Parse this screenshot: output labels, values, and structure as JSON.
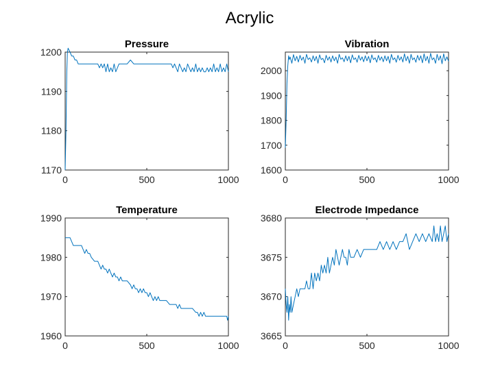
{
  "figure": {
    "title": "Acrylic"
  },
  "chart_data": [
    {
      "type": "line",
      "title": "Pressure",
      "xlabel": "",
      "ylabel": "",
      "xlim": [
        0,
        1000
      ],
      "ylim": [
        1170,
        1200
      ],
      "xticks": [
        0,
        500,
        1000
      ],
      "yticks": [
        1170,
        1180,
        1190,
        1200
      ],
      "grid": false,
      "color": "#0072BD",
      "series": [
        {
          "x": [
            0,
            5,
            10,
            14,
            18,
            30,
            40,
            50,
            60,
            70,
            80,
            90,
            95,
            100,
            120,
            150,
            180,
            200,
            210,
            220,
            230,
            240,
            250,
            260,
            270,
            280,
            290,
            300,
            310,
            320,
            330,
            340,
            350,
            380,
            400,
            420,
            430,
            440,
            460,
            500,
            550,
            600,
            650,
            660,
            670,
            680,
            690,
            700,
            710,
            720,
            730,
            740,
            750,
            760,
            770,
            780,
            790,
            800,
            810,
            820,
            830,
            840,
            850,
            860,
            870,
            880,
            890,
            900,
            910,
            920,
            930,
            940,
            950,
            960,
            970,
            980,
            990,
            1000
          ],
          "y": [
            1170,
            1180,
            1195,
            1200,
            1201,
            1200,
            1199,
            1199,
            1198,
            1198,
            1197,
            1197,
            1197,
            1197,
            1197,
            1197,
            1197,
            1197,
            1196,
            1197,
            1196,
            1197,
            1195,
            1197,
            1195,
            1196,
            1195,
            1197,
            1195,
            1196,
            1197,
            1197,
            1197,
            1197,
            1198,
            1197,
            1197,
            1197,
            1197,
            1197,
            1197,
            1197,
            1197,
            1196,
            1197,
            1196,
            1195,
            1197,
            1196,
            1195,
            1196,
            1195,
            1197,
            1196,
            1195,
            1196,
            1195,
            1197,
            1195,
            1196,
            1195,
            1196,
            1195,
            1195,
            1196,
            1195,
            1196,
            1195,
            1197,
            1195,
            1196,
            1195,
            1197,
            1195,
            1196,
            1195,
            1197,
            1195
          ]
        }
      ]
    },
    {
      "type": "line",
      "title": "Vibration",
      "xlabel": "",
      "ylabel": "",
      "xlim": [
        0,
        1000
      ],
      "ylim": [
        1600,
        2075
      ],
      "xticks": [
        0,
        500,
        1000
      ],
      "yticks": [
        1600,
        1700,
        1800,
        1900,
        2000
      ],
      "grid": false,
      "color": "#0072BD",
      "series": [
        {
          "x": [
            0,
            5,
            10,
            15,
            20,
            25,
            30,
            40,
            50,
            60,
            70,
            80,
            90,
            100,
            110,
            120,
            130,
            140,
            150,
            160,
            170,
            180,
            190,
            200,
            210,
            220,
            230,
            240,
            250,
            260,
            270,
            280,
            290,
            300,
            310,
            320,
            330,
            340,
            350,
            360,
            370,
            380,
            390,
            400,
            410,
            420,
            430,
            440,
            450,
            460,
            470,
            480,
            490,
            500,
            510,
            520,
            530,
            540,
            550,
            560,
            570,
            580,
            590,
            600,
            610,
            620,
            630,
            640,
            650,
            660,
            670,
            680,
            690,
            700,
            710,
            720,
            730,
            740,
            750,
            760,
            770,
            780,
            790,
            800,
            810,
            820,
            830,
            840,
            850,
            860,
            870,
            880,
            890,
            900,
            910,
            920,
            930,
            940,
            950,
            960,
            970,
            980,
            990,
            1000
          ],
          "y": [
            1690,
            1800,
            1950,
            2020,
            2060,
            2045,
            2055,
            2030,
            2065,
            2040,
            2058,
            2035,
            2062,
            2042,
            2055,
            2030,
            2066,
            2045,
            2052,
            2035,
            2060,
            2040,
            2058,
            2030,
            2064,
            2045,
            2050,
            2032,
            2062,
            2042,
            2056,
            2035,
            2060,
            2040,
            2055,
            2030,
            2066,
            2046,
            2052,
            2036,
            2060,
            2040,
            2058,
            2032,
            2064,
            2045,
            2052,
            2034,
            2062,
            2042,
            2056,
            2036,
            2060,
            2040,
            2058,
            2032,
            2064,
            2045,
            2052,
            2034,
            2062,
            2042,
            2056,
            2036,
            2060,
            2040,
            2058,
            2030,
            2066,
            2044,
            2052,
            2034,
            2062,
            2042,
            2056,
            2035,
            2068,
            2040,
            2058,
            2030,
            2066,
            2044,
            2052,
            2034,
            2062,
            2042,
            2060,
            2032,
            2068,
            2040,
            2058,
            2030,
            2070,
            2044,
            2052,
            2030,
            2066,
            2042,
            2060,
            2028,
            2068,
            2040,
            2056,
            2038
          ]
        }
      ]
    },
    {
      "type": "line",
      "title": "Temperature",
      "xlabel": "",
      "ylabel": "",
      "xlim": [
        0,
        1000
      ],
      "ylim": [
        1960,
        1990
      ],
      "xticks": [
        0,
        500,
        1000
      ],
      "yticks": [
        1960,
        1970,
        1980,
        1990
      ],
      "grid": false,
      "color": "#0072BD",
      "series": [
        {
          "x": [
            0,
            30,
            40,
            50,
            60,
            80,
            100,
            110,
            120,
            130,
            140,
            150,
            160,
            180,
            200,
            210,
            220,
            230,
            240,
            250,
            260,
            270,
            280,
            290,
            300,
            310,
            320,
            330,
            340,
            350,
            360,
            380,
            400,
            410,
            420,
            430,
            440,
            450,
            460,
            470,
            480,
            490,
            500,
            510,
            520,
            530,
            540,
            550,
            560,
            570,
            580,
            590,
            600,
            620,
            640,
            660,
            680,
            690,
            700,
            710,
            720,
            740,
            760,
            780,
            800,
            810,
            820,
            830,
            840,
            850,
            860,
            880,
            900,
            920,
            940,
            960,
            980,
            990,
            995,
            1000
          ],
          "y": [
            1985,
            1985,
            1984,
            1983,
            1983,
            1983,
            1983,
            1982,
            1981,
            1982,
            1981,
            1981,
            1980,
            1979,
            1979,
            1978,
            1977,
            1978,
            1977,
            1977,
            1976,
            1977,
            1976,
            1975,
            1976,
            1975,
            1975,
            1974,
            1975,
            1974,
            1974,
            1974,
            1973,
            1972,
            1973,
            1972,
            1972,
            1971,
            1972,
            1971,
            1972,
            1971,
            1971,
            1970,
            1971,
            1970,
            1969,
            1970,
            1969,
            1970,
            1969,
            1969,
            1969,
            1969,
            1968,
            1968,
            1968,
            1967,
            1968,
            1967,
            1967,
            1967,
            1967,
            1967,
            1966,
            1966,
            1965,
            1966,
            1965,
            1966,
            1965,
            1965,
            1965,
            1965,
            1965,
            1965,
            1965,
            1965,
            1964,
            1965
          ]
        }
      ]
    },
    {
      "type": "line",
      "title": "Electrode Impedance",
      "xlabel": "",
      "ylabel": "",
      "xlim": [
        0,
        1000
      ],
      "ylim": [
        3665,
        3680
      ],
      "xticks": [
        0,
        500,
        1000
      ],
      "yticks": [
        3665,
        3670,
        3675,
        3680
      ],
      "grid": false,
      "color": "#0072BD",
      "series": [
        {
          "x": [
            0,
            5,
            10,
            15,
            20,
            25,
            30,
            35,
            40,
            50,
            60,
            70,
            80,
            90,
            100,
            110,
            120,
            130,
            140,
            150,
            160,
            170,
            180,
            190,
            200,
            210,
            220,
            230,
            240,
            250,
            260,
            270,
            280,
            290,
            300,
            310,
            320,
            330,
            340,
            350,
            360,
            370,
            380,
            390,
            400,
            420,
            440,
            460,
            480,
            500,
            520,
            540,
            560,
            580,
            600,
            620,
            640,
            660,
            680,
            700,
            720,
            740,
            760,
            780,
            800,
            820,
            840,
            860,
            880,
            900,
            910,
            920,
            930,
            940,
            950,
            960,
            970,
            980,
            990,
            1000
          ],
          "y": [
            3671,
            3669,
            3668,
            3670,
            3667,
            3669,
            3668,
            3670,
            3668,
            3669,
            3670,
            3671,
            3670,
            3671,
            3671,
            3671,
            3671,
            3672,
            3671,
            3671,
            3673,
            3671,
            3673,
            3672,
            3673,
            3672,
            3674,
            3673,
            3674,
            3673,
            3675,
            3673,
            3674,
            3675,
            3674,
            3676,
            3675,
            3674,
            3675,
            3676,
            3675,
            3675,
            3674,
            3676,
            3675,
            3675,
            3676,
            3675,
            3676,
            3676,
            3676,
            3676,
            3676,
            3677,
            3676,
            3677,
            3676,
            3677,
            3676,
            3677,
            3677,
            3678,
            3676,
            3677,
            3678,
            3677,
            3678,
            3677,
            3678,
            3677,
            3679,
            3677,
            3678,
            3677,
            3679,
            3677,
            3678,
            3679,
            3677,
            3678
          ]
        }
      ]
    }
  ]
}
